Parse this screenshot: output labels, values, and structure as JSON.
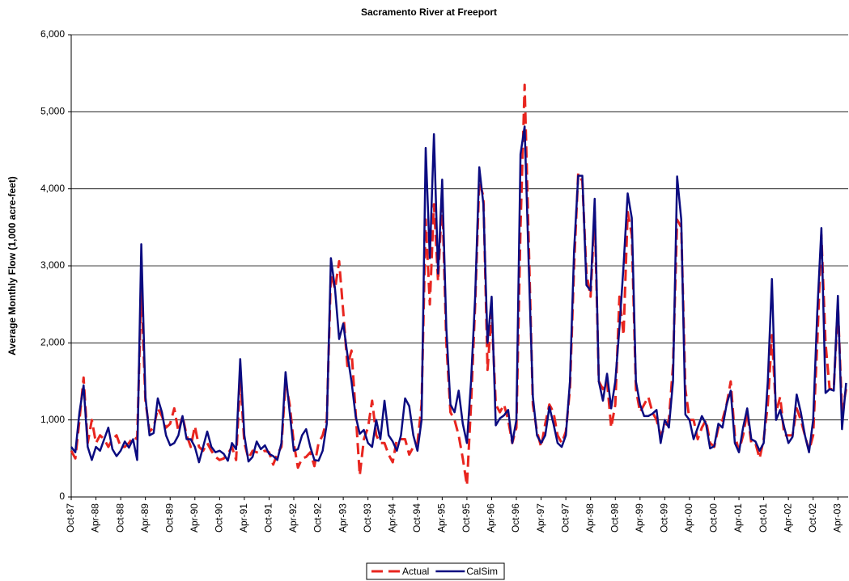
{
  "chart_data": {
    "type": "line",
    "title": "Sacramento River at Freeport",
    "y_label": "Average Monthly Flow (1,000 acre-feet)",
    "ylim": [
      0,
      6000
    ],
    "yticks": [
      0,
      {
        "value": 1000,
        "label": "1,000"
      },
      {
        "value": 2000,
        "label": "2,000"
      },
      {
        "value": 3000,
        "label": "3,000"
      },
      {
        "value": 4000,
        "label": "4,000"
      },
      {
        "value": 5000,
        "label": "5,000"
      },
      {
        "value": 6000,
        "label": "6,000"
      }
    ],
    "grid": true,
    "legend": "bottom",
    "categories": [
      "Oct-87",
      null,
      null,
      null,
      null,
      null,
      "Apr-88",
      null,
      null,
      null,
      null,
      null,
      "Oct-88",
      null,
      null,
      null,
      null,
      null,
      "Apr-89",
      null,
      null,
      null,
      null,
      null,
      "Oct-89",
      null,
      null,
      null,
      null,
      null,
      "Apr-90",
      null,
      null,
      null,
      null,
      null,
      "Oct-90",
      null,
      null,
      null,
      null,
      null,
      "Apr-91",
      null,
      null,
      null,
      null,
      null,
      "Oct-91",
      null,
      null,
      null,
      null,
      null,
      "Apr-92",
      null,
      null,
      null,
      null,
      null,
      "Oct-92",
      null,
      null,
      null,
      null,
      null,
      "Apr-93",
      null,
      null,
      null,
      null,
      null,
      "Oct-93",
      null,
      null,
      null,
      null,
      null,
      "Apr-94",
      null,
      null,
      null,
      null,
      null,
      "Oct-94",
      null,
      null,
      null,
      null,
      null,
      "Apr-95",
      null,
      null,
      null,
      null,
      null,
      "Oct-95",
      null,
      null,
      null,
      null,
      null,
      "Apr-96",
      null,
      null,
      null,
      null,
      null,
      "Oct-96",
      null,
      null,
      null,
      null,
      null,
      "Apr-97",
      null,
      null,
      null,
      null,
      null,
      "Oct-97",
      null,
      null,
      null,
      null,
      null,
      "Apr-98",
      null,
      null,
      null,
      null,
      null,
      "Oct-98",
      null,
      null,
      null,
      null,
      null,
      "Apr-99",
      null,
      null,
      null,
      null,
      null,
      "Oct-99",
      null,
      null,
      null,
      null,
      null,
      "Apr-00",
      null,
      null,
      null,
      null,
      null,
      "Oct-00",
      null,
      null,
      null,
      null,
      null,
      "Apr-01",
      null,
      null,
      null,
      null,
      null,
      "Oct-01",
      null,
      null,
      null,
      null,
      null,
      "Apr-02",
      null,
      null,
      null,
      null,
      null,
      "Oct-02",
      null,
      null,
      null,
      null,
      null,
      "Apr-03",
      null,
      null
    ],
    "series": [
      {
        "name": "Actual",
        "color": "#e8251f",
        "dash": true,
        "values": [
          600,
          500,
          1000,
          1550,
          700,
          1000,
          700,
          800,
          750,
          650,
          750,
          800,
          650,
          650,
          700,
          780,
          750,
          2700,
          1250,
          850,
          900,
          1150,
          1050,
          900,
          950,
          1150,
          850,
          1050,
          800,
          650,
          920,
          650,
          600,
          700,
          600,
          520,
          480,
          500,
          560,
          650,
          480,
          1550,
          700,
          500,
          600,
          580,
          580,
          600,
          580,
          420,
          560,
          650,
          1500,
          1200,
          700,
          380,
          500,
          520,
          580,
          400,
          700,
          800,
          1000,
          2900,
          2700,
          3060,
          2400,
          1700,
          1900,
          1100,
          280,
          750,
          900,
          1250,
          800,
          700,
          700,
          550,
          450,
          750,
          750,
          750,
          550,
          650,
          700,
          1200,
          3600,
          2500,
          3800,
          2800,
          3900,
          2000,
          1100,
          1000,
          800,
          500,
          150,
          1200,
          2500,
          4100,
          3900,
          1650,
          2400,
          1200,
          1100,
          1200,
          1000,
          700,
          900,
          3500,
          5350,
          3300,
          1200,
          850,
          650,
          950,
          1200,
          1100,
          800,
          700,
          850,
          1400,
          3000,
          4200,
          4100,
          2900,
          2600,
          3700,
          1500,
          1400,
          1500,
          900,
          1200,
          2600,
          2100,
          3700,
          3400,
          1400,
          1100,
          1200,
          1300,
          1100,
          1000,
          800,
          900,
          1000,
          1700,
          3600,
          3500,
          1400,
          1000,
          1000,
          750,
          900,
          1000,
          700,
          650,
          900,
          1000,
          1200,
          1500,
          800,
          600,
          800,
          1100,
          700,
          700,
          500,
          750,
          1200,
          2100,
          1100,
          1300,
          800,
          800,
          800,
          1150,
          1000,
          800,
          600,
          800,
          2000,
          3400,
          2000,
          1400,
          1400,
          2500,
          1100,
          1400
        ]
      },
      {
        "name": "CalSim",
        "color": "#0b0b80",
        "dash": false,
        "values": [
          650,
          580,
          1100,
          1450,
          650,
          480,
          650,
          600,
          750,
          900,
          620,
          530,
          600,
          720,
          640,
          750,
          480,
          3280,
          1300,
          800,
          830,
          1280,
          1100,
          800,
          670,
          700,
          800,
          1050,
          750,
          750,
          650,
          450,
          650,
          850,
          650,
          580,
          600,
          560,
          470,
          700,
          620,
          1790,
          800,
          460,
          520,
          720,
          620,
          670,
          560,
          530,
          480,
          700,
          1620,
          1100,
          600,
          620,
          800,
          880,
          650,
          480,
          470,
          600,
          950,
          3100,
          2700,
          2050,
          2250,
          1850,
          1500,
          1050,
          820,
          870,
          700,
          650,
          1000,
          750,
          1250,
          800,
          720,
          600,
          800,
          1280,
          1180,
          800,
          600,
          1000,
          4530,
          3100,
          4710,
          2900,
          4120,
          2200,
          1200,
          1100,
          1380,
          950,
          700,
          1500,
          2600,
          4280,
          3800,
          2000,
          2600,
          930,
          1020,
          1060,
          1130,
          700,
          1000,
          4450,
          4810,
          3000,
          1300,
          800,
          700,
          800,
          1170,
          950,
          700,
          650,
          800,
          1500,
          3200,
          4170,
          4170,
          2750,
          2680,
          3870,
          1500,
          1250,
          1600,
          1150,
          1500,
          2200,
          3000,
          3940,
          3620,
          1500,
          1200,
          1050,
          1050,
          1080,
          1130,
          700,
          1000,
          900,
          1500,
          4160,
          3600,
          1070,
          1000,
          750,
          900,
          1050,
          950,
          630,
          660,
          950,
          900,
          1200,
          1380,
          700,
          580,
          900,
          1150,
          750,
          720,
          600,
          700,
          1500,
          2830,
          1000,
          1130,
          900,
          700,
          780,
          1330,
          1100,
          800,
          580,
          1000,
          2400,
          3490,
          1350,
          1400,
          1380,
          2610,
          880,
          1480
        ]
      }
    ]
  }
}
